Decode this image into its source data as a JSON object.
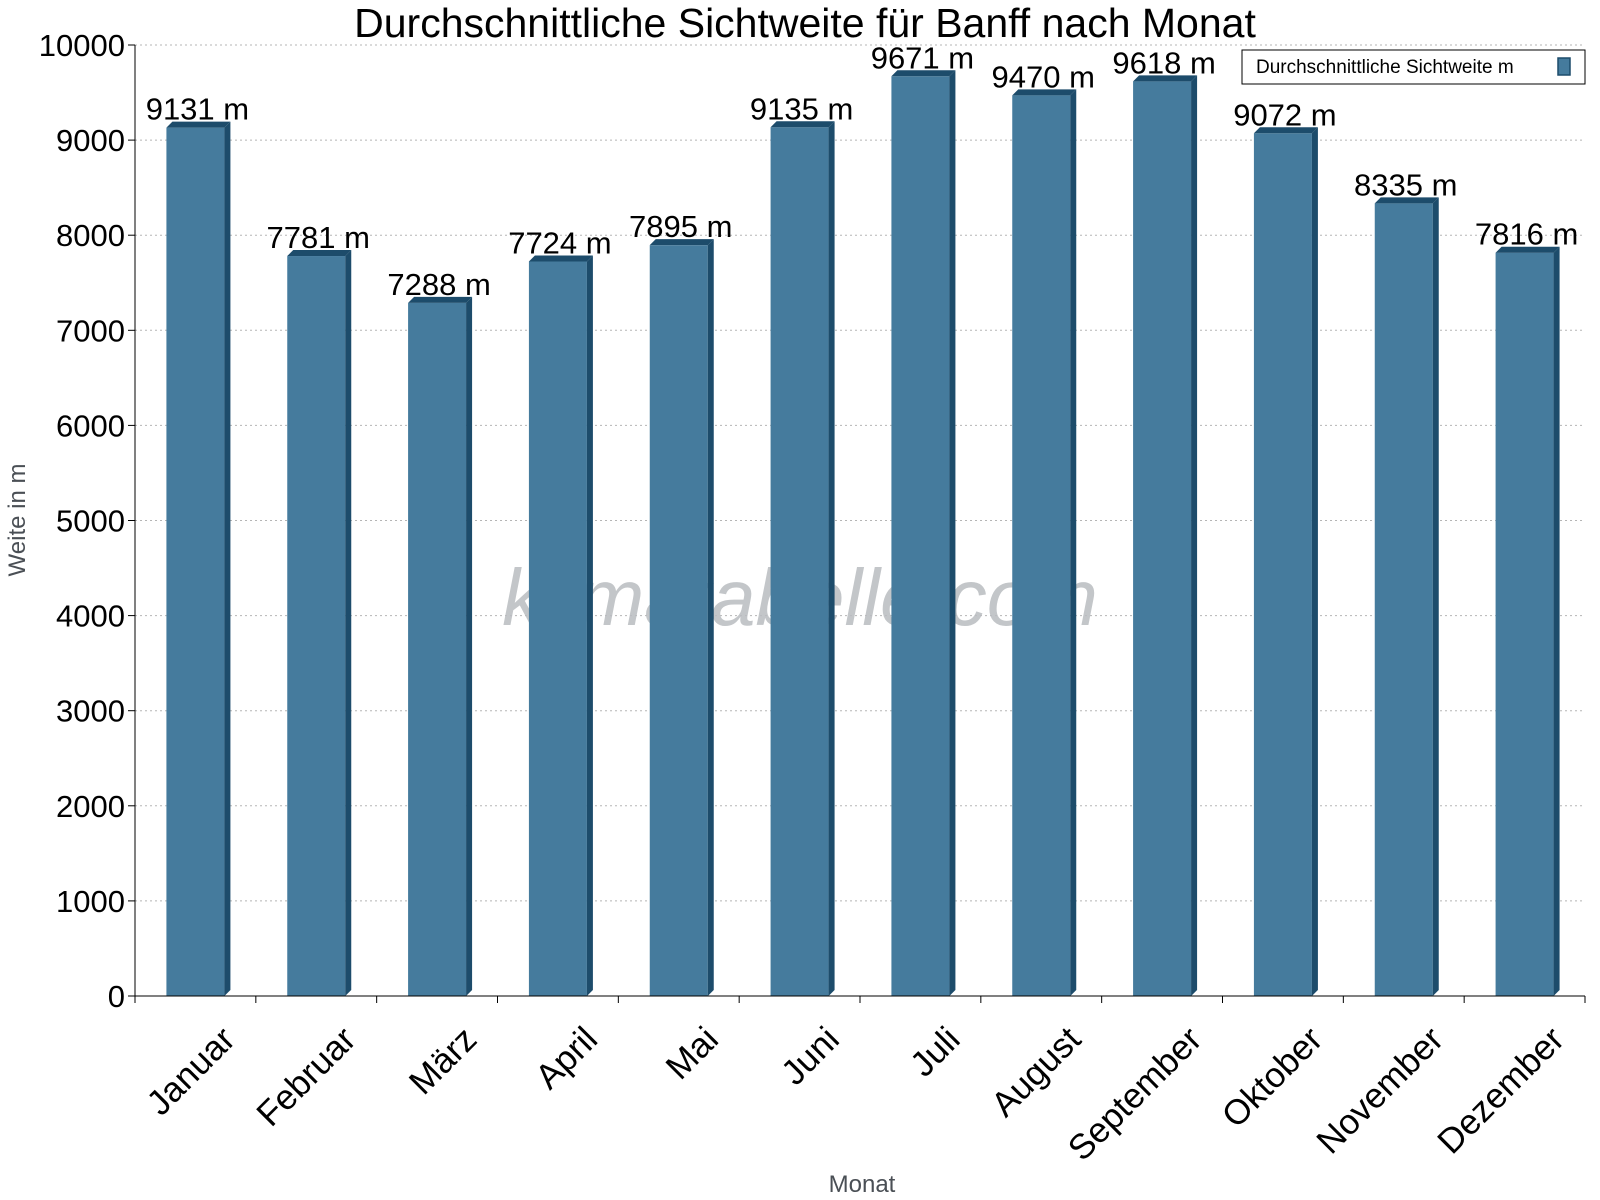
{
  "chart_data": {
    "type": "bar",
    "title": "Durchschnittliche Sichtweite für Banff nach Monat",
    "xlabel": "Monat",
    "ylabel": "Weite in m",
    "categories": [
      "Januar",
      "Februar",
      "März",
      "April",
      "Mai",
      "Juni",
      "Juli",
      "August",
      "September",
      "Oktober",
      "November",
      "Dezember"
    ],
    "series": [
      {
        "name": "Durchschnittliche Sichtweite m",
        "values": [
          9131,
          7781,
          7288,
          7724,
          7895,
          9135,
          9671,
          9470,
          9618,
          9072,
          8335,
          7816
        ],
        "labels": [
          "9131 m",
          "7781 m",
          "7288 m",
          "7724 m",
          "7895 m",
          "9135 m",
          "9671 m",
          "9470 m",
          "9618 m",
          "9072 m",
          "8335 m",
          "7816 m"
        ],
        "color": "#457b9d",
        "side_color": "#1d4c6b"
      }
    ],
    "ylim": [
      0,
      10000
    ],
    "yticks": [
      0,
      1000,
      2000,
      3000,
      4000,
      5000,
      6000,
      7000,
      8000,
      9000,
      10000
    ],
    "grid": true,
    "legend_position": "top-right",
    "watermark": "klimatabelle.com"
  }
}
